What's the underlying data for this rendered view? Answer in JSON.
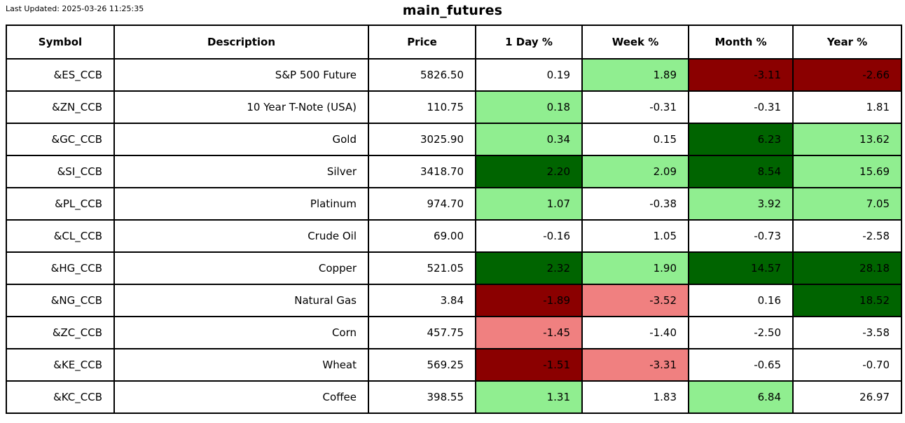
{
  "meta": {
    "last_updated": "Last Updated: 2025-03-26 11:25:35",
    "title": "main_futures"
  },
  "colors": {
    "strong_positive": "#006400",
    "positive": "#90EE90",
    "neutral": "#ffffff",
    "negative": "#F08080",
    "strong_negative": "#8B0000"
  },
  "table": {
    "columns": [
      "Symbol",
      "Description",
      "Price",
      "1 Day %",
      "Week %",
      "Month %",
      "Year %"
    ],
    "rows": [
      {
        "symbol": "&ES_CCB",
        "description": "S&P 500 Future",
        "price": "5826.50",
        "cells": [
          {
            "value": "0.19",
            "color": "neutral"
          },
          {
            "value": "1.89",
            "color": "positive"
          },
          {
            "value": "-3.11",
            "color": "strong_negative"
          },
          {
            "value": "-2.66",
            "color": "strong_negative"
          }
        ]
      },
      {
        "symbol": "&ZN_CCB",
        "description": "10 Year T-Note (USA)",
        "price": "110.75",
        "cells": [
          {
            "value": "0.18",
            "color": "positive"
          },
          {
            "value": "-0.31",
            "color": "neutral"
          },
          {
            "value": "-0.31",
            "color": "neutral"
          },
          {
            "value": "1.81",
            "color": "neutral"
          }
        ]
      },
      {
        "symbol": "&GC_CCB",
        "description": "Gold",
        "price": "3025.90",
        "cells": [
          {
            "value": "0.34",
            "color": "positive"
          },
          {
            "value": "0.15",
            "color": "neutral"
          },
          {
            "value": "6.23",
            "color": "strong_positive"
          },
          {
            "value": "13.62",
            "color": "positive"
          }
        ]
      },
      {
        "symbol": "&SI_CCB",
        "description": "Silver",
        "price": "3418.70",
        "cells": [
          {
            "value": "2.20",
            "color": "strong_positive"
          },
          {
            "value": "2.09",
            "color": "positive"
          },
          {
            "value": "8.54",
            "color": "strong_positive"
          },
          {
            "value": "15.69",
            "color": "positive"
          }
        ]
      },
      {
        "symbol": "&PL_CCB",
        "description": "Platinum",
        "price": "974.70",
        "cells": [
          {
            "value": "1.07",
            "color": "positive"
          },
          {
            "value": "-0.38",
            "color": "neutral"
          },
          {
            "value": "3.92",
            "color": "positive"
          },
          {
            "value": "7.05",
            "color": "positive"
          }
        ]
      },
      {
        "symbol": "&CL_CCB",
        "description": "Crude Oil",
        "price": "69.00",
        "cells": [
          {
            "value": "-0.16",
            "color": "neutral"
          },
          {
            "value": "1.05",
            "color": "neutral"
          },
          {
            "value": "-0.73",
            "color": "neutral"
          },
          {
            "value": "-2.58",
            "color": "neutral"
          }
        ]
      },
      {
        "symbol": "&HG_CCB",
        "description": "Copper",
        "price": "521.05",
        "cells": [
          {
            "value": "2.32",
            "color": "strong_positive"
          },
          {
            "value": "1.90",
            "color": "positive"
          },
          {
            "value": "14.57",
            "color": "strong_positive"
          },
          {
            "value": "28.18",
            "color": "strong_positive"
          }
        ]
      },
      {
        "symbol": "&NG_CCB",
        "description": "Natural Gas",
        "price": "3.84",
        "cells": [
          {
            "value": "-1.89",
            "color": "strong_negative"
          },
          {
            "value": "-3.52",
            "color": "negative"
          },
          {
            "value": "0.16",
            "color": "neutral"
          },
          {
            "value": "18.52",
            "color": "strong_positive"
          }
        ]
      },
      {
        "symbol": "&ZC_CCB",
        "description": "Corn",
        "price": "457.75",
        "cells": [
          {
            "value": "-1.45",
            "color": "negative"
          },
          {
            "value": "-1.40",
            "color": "neutral"
          },
          {
            "value": "-2.50",
            "color": "neutral"
          },
          {
            "value": "-3.58",
            "color": "neutral"
          }
        ]
      },
      {
        "symbol": "&KE_CCB",
        "description": "Wheat",
        "price": "569.25",
        "cells": [
          {
            "value": "-1.51",
            "color": "strong_negative"
          },
          {
            "value": "-3.31",
            "color": "negative"
          },
          {
            "value": "-0.65",
            "color": "neutral"
          },
          {
            "value": "-0.70",
            "color": "neutral"
          }
        ]
      },
      {
        "symbol": "&KC_CCB",
        "description": "Coffee",
        "price": "398.55",
        "cells": [
          {
            "value": "1.31",
            "color": "positive"
          },
          {
            "value": "1.83",
            "color": "neutral"
          },
          {
            "value": "6.84",
            "color": "positive"
          },
          {
            "value": "26.97",
            "color": "neutral"
          }
        ]
      }
    ]
  }
}
